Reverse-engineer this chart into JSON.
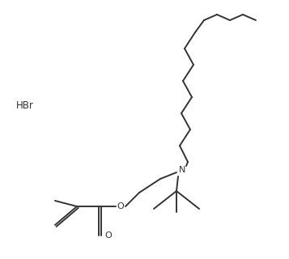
{
  "background_color": "#ffffff",
  "line_color": "#333333",
  "line_width": 1.4,
  "text_color": "#333333",
  "hbr_label": "HBr",
  "figsize": [
    3.57,
    3.2
  ],
  "dpi": 100,
  "xlim": [
    0,
    357
  ],
  "ylim": [
    0,
    320
  ]
}
